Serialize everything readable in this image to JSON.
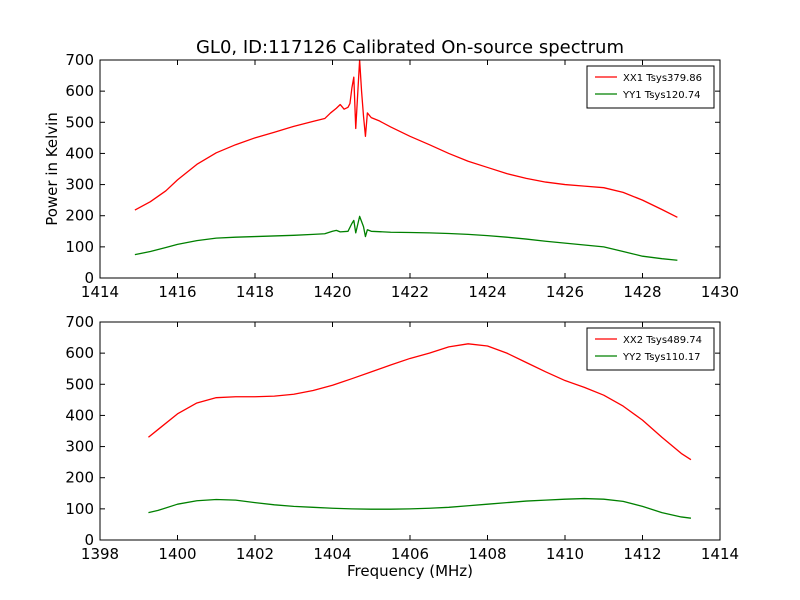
{
  "figure": {
    "title": "GL0, ID:117126 Calibrated On-source spectrum",
    "ylabel": "Power in Kelvin",
    "xlabel": "Frequency (MHz)"
  },
  "chart_data": [
    {
      "type": "line",
      "title": "GL0, ID:117126 Calibrated On-source spectrum",
      "xlabel": "",
      "ylabel": "Power in Kelvin",
      "xlim": [
        1414,
        1430
      ],
      "ylim": [
        0,
        700
      ],
      "xticks": [
        1414,
        1416,
        1418,
        1420,
        1422,
        1424,
        1426,
        1428,
        1430
      ],
      "yticks": [
        0,
        100,
        200,
        300,
        400,
        500,
        600,
        700
      ],
      "grid": false,
      "legend_position": "top-right",
      "series": [
        {
          "name": "XX1 Tsys379.86",
          "color": "#ff0000",
          "points": [
            [
              1414.9,
              218
            ],
            [
              1415.3,
              245
            ],
            [
              1415.7,
              280
            ],
            [
              1416.0,
              315
            ],
            [
              1416.5,
              365
            ],
            [
              1417.0,
              402
            ],
            [
              1417.5,
              428
            ],
            [
              1418.0,
              450
            ],
            [
              1418.5,
              468
            ],
            [
              1419.0,
              487
            ],
            [
              1419.5,
              503
            ],
            [
              1419.8,
              512
            ],
            [
              1419.95,
              530
            ],
            [
              1420.1,
              545
            ],
            [
              1420.2,
              557
            ],
            [
              1420.3,
              542
            ],
            [
              1420.4,
              548
            ],
            [
              1420.45,
              560
            ],
            [
              1420.5,
              610
            ],
            [
              1420.55,
              645
            ],
            [
              1420.6,
              480
            ],
            [
              1420.65,
              590
            ],
            [
              1420.7,
              700
            ],
            [
              1420.75,
              600
            ],
            [
              1420.8,
              520
            ],
            [
              1420.85,
              455
            ],
            [
              1420.9,
              530
            ],
            [
              1421.0,
              515
            ],
            [
              1421.2,
              505
            ],
            [
              1421.5,
              485
            ],
            [
              1422.0,
              455
            ],
            [
              1422.5,
              428
            ],
            [
              1423.0,
              400
            ],
            [
              1423.5,
              375
            ],
            [
              1424.0,
              355
            ],
            [
              1424.5,
              335
            ],
            [
              1425.0,
              320
            ],
            [
              1425.5,
              308
            ],
            [
              1426.0,
              300
            ],
            [
              1426.5,
              295
            ],
            [
              1427.0,
              290
            ],
            [
              1427.5,
              275
            ],
            [
              1428.0,
              250
            ],
            [
              1428.5,
              220
            ],
            [
              1428.9,
              195
            ]
          ]
        },
        {
          "name": "YY1 Tsys120.74",
          "color": "#008000",
          "points": [
            [
              1414.9,
              75
            ],
            [
              1415.3,
              85
            ],
            [
              1415.7,
              98
            ],
            [
              1416.0,
              108
            ],
            [
              1416.5,
              120
            ],
            [
              1417.0,
              128
            ],
            [
              1417.5,
              131
            ],
            [
              1418.0,
              133
            ],
            [
              1418.5,
              135
            ],
            [
              1419.0,
              137
            ],
            [
              1419.5,
              140
            ],
            [
              1419.8,
              142
            ],
            [
              1420.0,
              150
            ],
            [
              1420.1,
              153
            ],
            [
              1420.2,
              148
            ],
            [
              1420.4,
              150
            ],
            [
              1420.5,
              175
            ],
            [
              1420.55,
              185
            ],
            [
              1420.6,
              145
            ],
            [
              1420.7,
              198
            ],
            [
              1420.8,
              165
            ],
            [
              1420.85,
              133
            ],
            [
              1420.9,
              155
            ],
            [
              1421.0,
              150
            ],
            [
              1421.5,
              147
            ],
            [
              1422.0,
              146
            ],
            [
              1422.5,
              145
            ],
            [
              1423.0,
              143
            ],
            [
              1423.5,
              140
            ],
            [
              1424.0,
              136
            ],
            [
              1424.5,
              131
            ],
            [
              1425.0,
              125
            ],
            [
              1425.5,
              118
            ],
            [
              1426.0,
              112
            ],
            [
              1426.5,
              106
            ],
            [
              1427.0,
              100
            ],
            [
              1427.5,
              85
            ],
            [
              1428.0,
              70
            ],
            [
              1428.5,
              62
            ],
            [
              1428.9,
              57
            ]
          ]
        }
      ]
    },
    {
      "type": "line",
      "title": "",
      "xlabel": "Frequency (MHz)",
      "ylabel": "",
      "xlim": [
        1398,
        1414
      ],
      "ylim": [
        0,
        700
      ],
      "xticks": [
        1398,
        1400,
        1402,
        1404,
        1406,
        1408,
        1410,
        1412,
        1414
      ],
      "yticks": [
        0,
        100,
        200,
        300,
        400,
        500,
        600,
        700
      ],
      "grid": false,
      "legend_position": "top-right",
      "series": [
        {
          "name": "XX2 Tsys489.74",
          "color": "#ff0000",
          "points": [
            [
              1399.25,
              330
            ],
            [
              1399.5,
              355
            ],
            [
              1400.0,
              405
            ],
            [
              1400.5,
              440
            ],
            [
              1401.0,
              457
            ],
            [
              1401.5,
              460
            ],
            [
              1402.0,
              460
            ],
            [
              1402.5,
              462
            ],
            [
              1403.0,
              468
            ],
            [
              1403.5,
              480
            ],
            [
              1404.0,
              497
            ],
            [
              1404.5,
              518
            ],
            [
              1405.0,
              540
            ],
            [
              1405.5,
              562
            ],
            [
              1406.0,
              583
            ],
            [
              1406.5,
              600
            ],
            [
              1407.0,
              620
            ],
            [
              1407.5,
              630
            ],
            [
              1408.0,
              623
            ],
            [
              1408.5,
              600
            ],
            [
              1409.0,
              570
            ],
            [
              1409.5,
              540
            ],
            [
              1410.0,
              512
            ],
            [
              1410.5,
              490
            ],
            [
              1411.0,
              465
            ],
            [
              1411.5,
              430
            ],
            [
              1412.0,
              385
            ],
            [
              1412.5,
              330
            ],
            [
              1413.0,
              278
            ],
            [
              1413.25,
              258
            ]
          ]
        },
        {
          "name": "YY2 Tsys110.17",
          "color": "#008000",
          "points": [
            [
              1399.25,
              88
            ],
            [
              1399.5,
              95
            ],
            [
              1400.0,
              115
            ],
            [
              1400.5,
              126
            ],
            [
              1401.0,
              130
            ],
            [
              1401.5,
              128
            ],
            [
              1402.0,
              120
            ],
            [
              1402.5,
              113
            ],
            [
              1403.0,
              108
            ],
            [
              1403.5,
              105
            ],
            [
              1404.0,
              102
            ],
            [
              1404.5,
              100
            ],
            [
              1405.0,
              99
            ],
            [
              1405.5,
              99
            ],
            [
              1406.0,
              100
            ],
            [
              1406.5,
              102
            ],
            [
              1407.0,
              105
            ],
            [
              1407.5,
              110
            ],
            [
              1408.0,
              115
            ],
            [
              1408.5,
              120
            ],
            [
              1409.0,
              125
            ],
            [
              1409.5,
              128
            ],
            [
              1410.0,
              131
            ],
            [
              1410.5,
              133
            ],
            [
              1411.0,
              131
            ],
            [
              1411.5,
              124
            ],
            [
              1412.0,
              108
            ],
            [
              1412.5,
              88
            ],
            [
              1413.0,
              74
            ],
            [
              1413.25,
              70
            ]
          ]
        }
      ]
    }
  ]
}
